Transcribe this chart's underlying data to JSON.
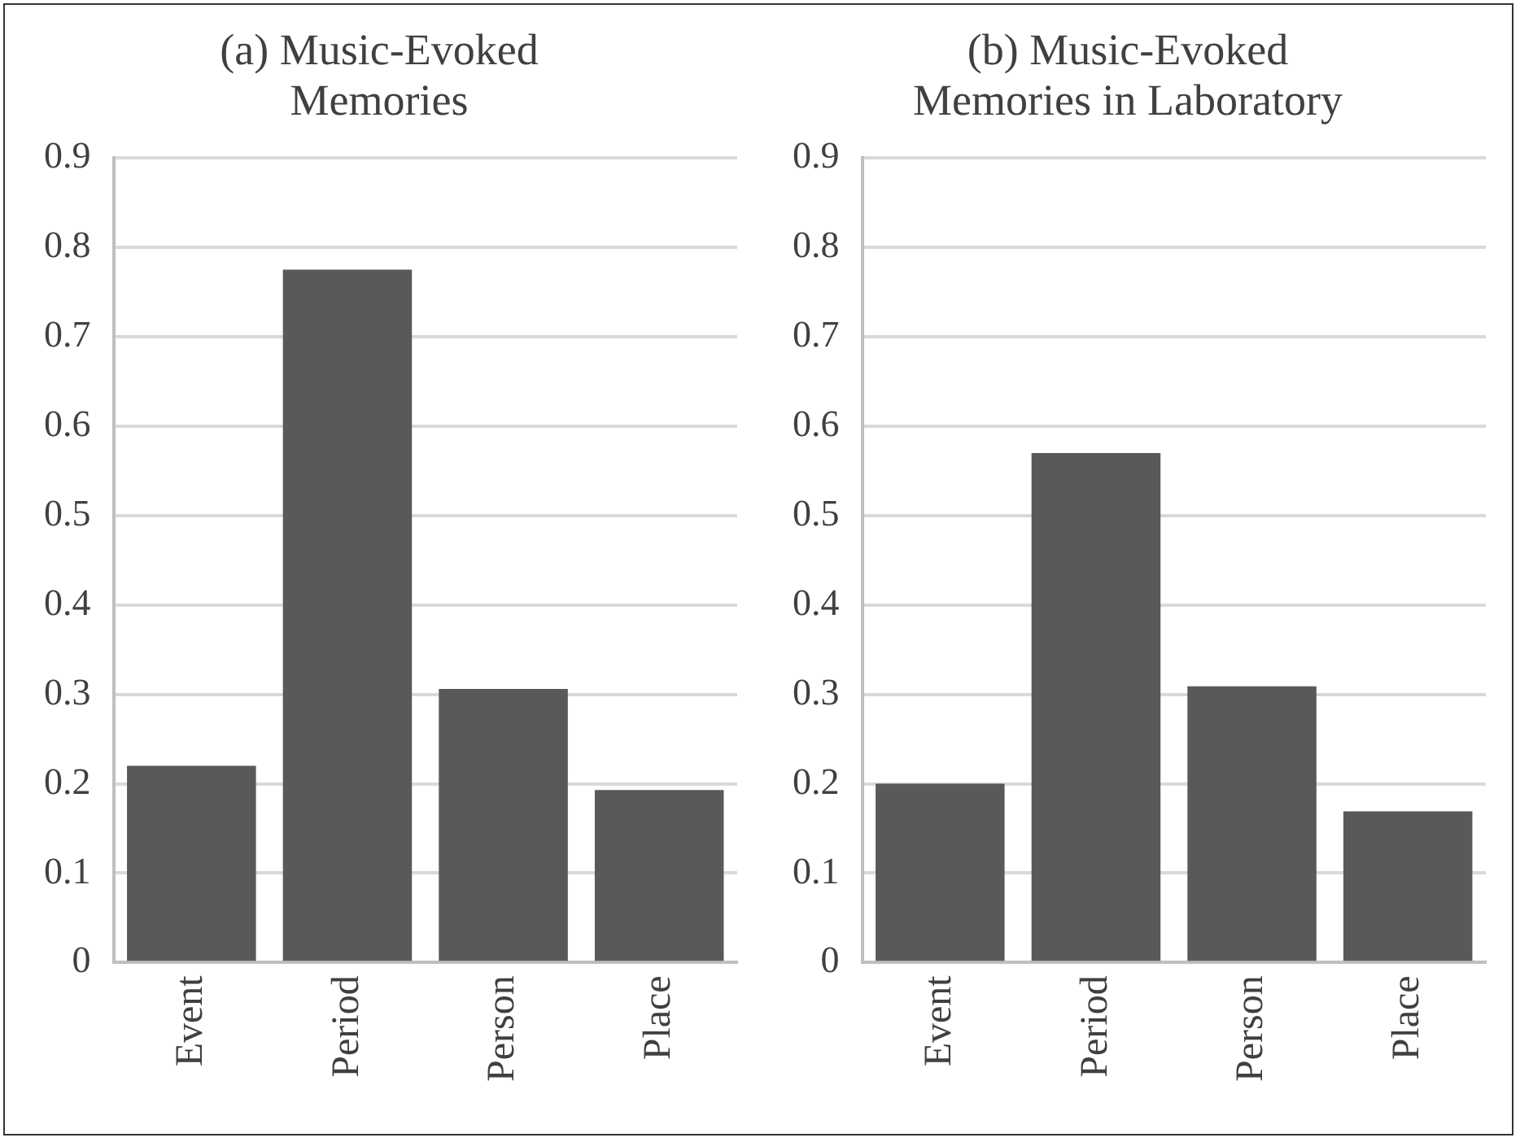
{
  "chart_data": [
    {
      "type": "bar",
      "title": "(a) Music-Evoked\nMemories",
      "categories": [
        "Event",
        "Period",
        "Person",
        "Place"
      ],
      "values": [
        0.22,
        0.775,
        0.306,
        0.193
      ],
      "color": "#595959",
      "ylim": [
        0,
        0.9
      ],
      "yticks": [
        0,
        0.1,
        0.2,
        0.3,
        0.4,
        0.5,
        0.6,
        0.7,
        0.8,
        0.9
      ],
      "grid": true
    },
    {
      "type": "bar",
      "title": "(b) Music-Evoked\nMemories in Laboratory",
      "categories": [
        "Event",
        "Period",
        "Person",
        "Place"
      ],
      "values": [
        0.2,
        0.57,
        0.309,
        0.169
      ],
      "color": "#595959",
      "ylim": [
        0,
        0.9
      ],
      "yticks": [
        0,
        0.1,
        0.2,
        0.3,
        0.4,
        0.5,
        0.6,
        0.7,
        0.8,
        0.9
      ],
      "grid": true
    }
  ]
}
